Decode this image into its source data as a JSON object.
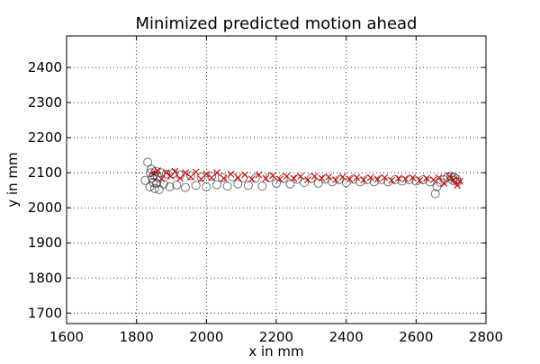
{
  "chart_data": {
    "type": "scatter",
    "title": "Minimized predicted motion ahead",
    "xlabel": "x in mm",
    "ylabel": "y in mm",
    "xlim": [
      1600,
      2800
    ],
    "ylim": [
      1670,
      2490
    ],
    "x_ticks": [
      "1600",
      "1800",
      "2000",
      "2200",
      "2400",
      "2600",
      "2800"
    ],
    "y_ticks": [
      "1700",
      "1800",
      "1900",
      "2000",
      "2100",
      "2200",
      "2300",
      "2400"
    ],
    "grid": true,
    "legend": "none",
    "series": [
      {
        "marker": "circle",
        "color": "#000000",
        "x": [
          1825,
          1832,
          1838,
          1840,
          1842,
          1845,
          1848,
          1850,
          1852,
          1855,
          1858,
          1860,
          1865,
          1870,
          1878,
          1885,
          1895,
          1905,
          1915,
          1925,
          1940,
          1955,
          1970,
          1985,
          2000,
          2015,
          2030,
          2045,
          2060,
          2075,
          2090,
          2105,
          2120,
          2140,
          2160,
          2180,
          2200,
          2220,
          2240,
          2260,
          2280,
          2300,
          2320,
          2340,
          2360,
          2380,
          2400,
          2420,
          2440,
          2460,
          2480,
          2500,
          2520,
          2540,
          2560,
          2580,
          2600,
          2620,
          2640,
          2655,
          2660,
          2670,
          2680,
          2690,
          2700,
          2705,
          2710,
          2715,
          2718
        ],
        "y": [
          2078,
          2130,
          2060,
          2100,
          2110,
          2085,
          2072,
          2092,
          2055,
          2104,
          2070,
          2088,
          2052,
          2100,
          2068,
          2096,
          2060,
          2098,
          2065,
          2094,
          2058,
          2092,
          2064,
          2088,
          2060,
          2090,
          2066,
          2086,
          2062,
          2088,
          2068,
          2085,
          2064,
          2084,
          2062,
          2086,
          2070,
          2084,
          2068,
          2082,
          2072,
          2084,
          2070,
          2082,
          2074,
          2080,
          2072,
          2082,
          2074,
          2080,
          2074,
          2080,
          2074,
          2080,
          2076,
          2080,
          2076,
          2080,
          2074,
          2040,
          2060,
          2072,
          2080,
          2088,
          2090,
          2078,
          2086,
          2082,
          2074
        ]
      },
      {
        "marker": "x",
        "color": "#d40000",
        "x": [
          1850,
          1860,
          1872,
          1885,
          1898,
          1910,
          1925,
          1940,
          1955,
          1970,
          1985,
          2000,
          2015,
          2030,
          2050,
          2070,
          2090,
          2110,
          2130,
          2150,
          2170,
          2190,
          2210,
          2230,
          2250,
          2270,
          2290,
          2310,
          2330,
          2350,
          2370,
          2390,
          2410,
          2430,
          2450,
          2470,
          2490,
          2510,
          2530,
          2550,
          2570,
          2590,
          2610,
          2630,
          2650,
          2665,
          2680,
          2695,
          2708,
          2718,
          2725
        ],
        "y": [
          2098,
          2106,
          2082,
          2100,
          2090,
          2104,
          2084,
          2100,
          2088,
          2102,
          2082,
          2096,
          2086,
          2100,
          2084,
          2096,
          2086,
          2094,
          2082,
          2094,
          2084,
          2092,
          2082,
          2090,
          2084,
          2090,
          2080,
          2090,
          2084,
          2088,
          2080,
          2088,
          2082,
          2086,
          2080,
          2086,
          2082,
          2086,
          2078,
          2084,
          2082,
          2086,
          2078,
          2084,
          2080,
          2086,
          2070,
          2090,
          2080,
          2064,
          2076
        ]
      }
    ]
  }
}
